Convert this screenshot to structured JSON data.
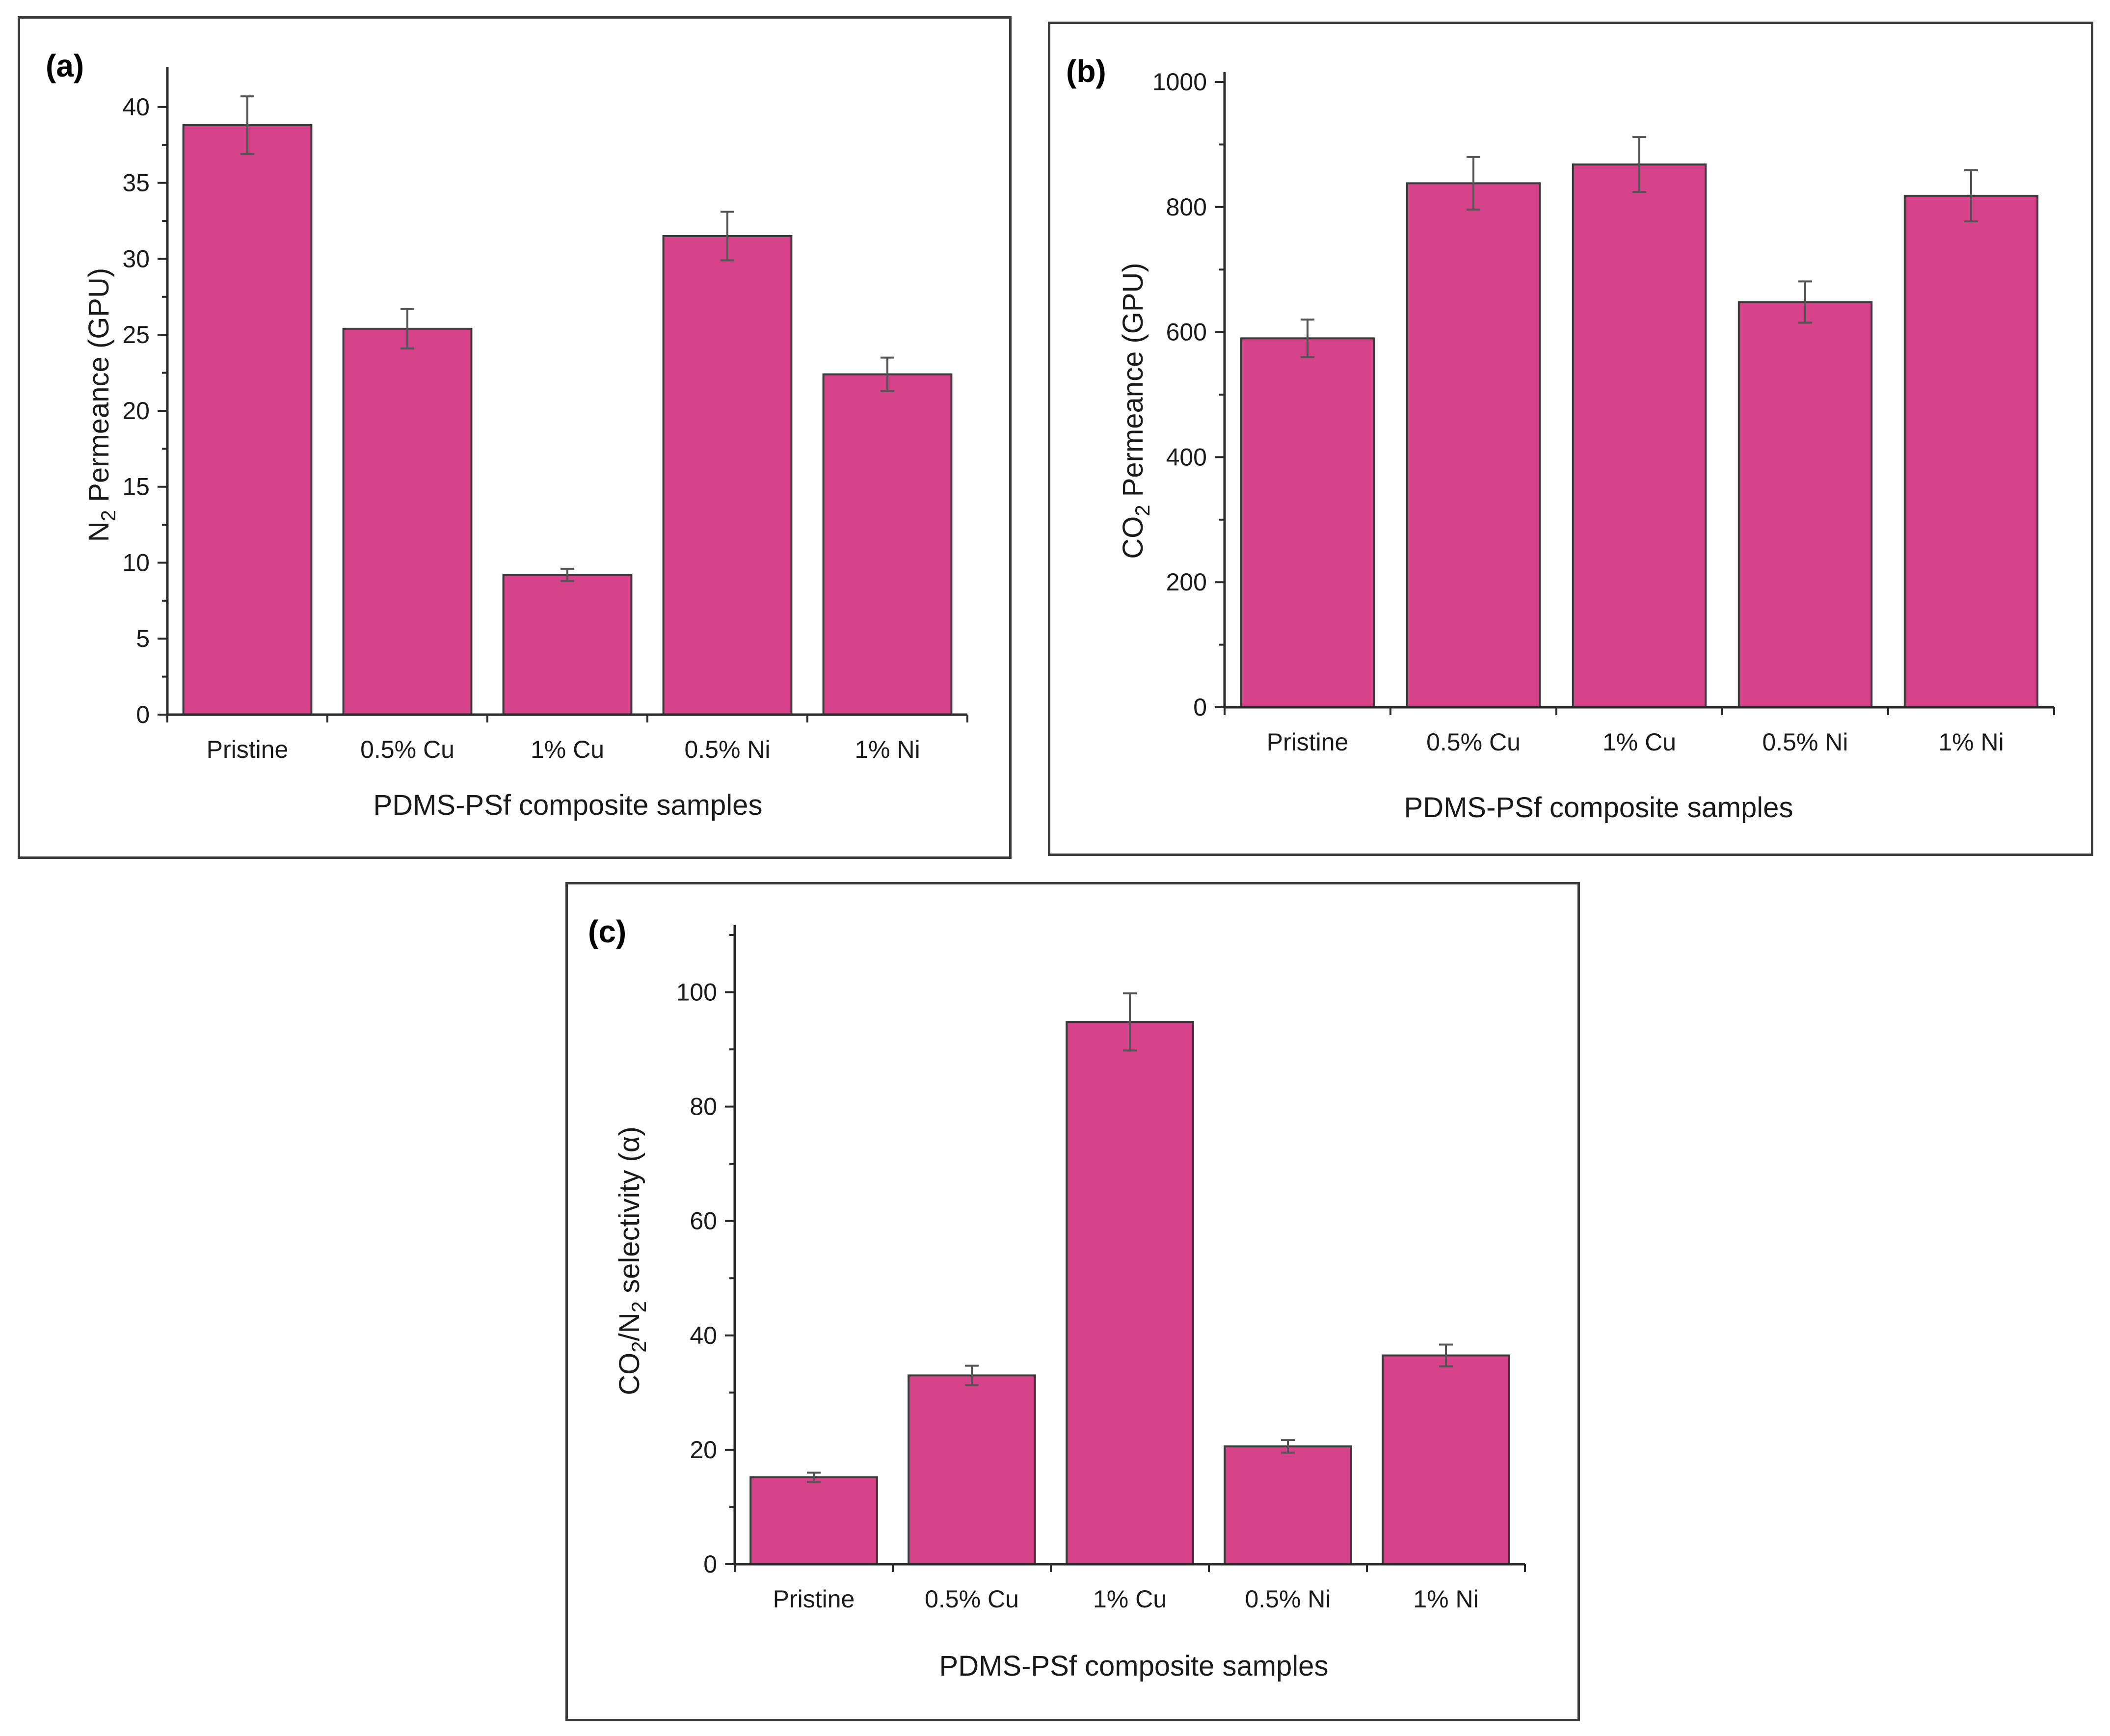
{
  "colors": {
    "bar_fill": "#d6438a",
    "axis": "#2a2a2a"
  },
  "chart_data": [
    {
      "type": "bar",
      "panel_label": "(a)",
      "categories": [
        "Pristine",
        "0.5% Cu",
        "1% Cu",
        "0.5% Ni",
        "1% Ni"
      ],
      "values": [
        38.8,
        25.4,
        9.2,
        31.5,
        22.4
      ],
      "errors": [
        1.9,
        1.3,
        0.4,
        1.6,
        1.1
      ],
      "xlabel": "PDMS-PSf composite samples",
      "ylabel_main": "N",
      "ylabel_sub": "2",
      "ylabel_rest": " Permeance (GPU)",
      "ylim": [
        0,
        42
      ],
      "yticks": [
        0,
        5,
        10,
        15,
        20,
        25,
        30,
        35,
        40
      ],
      "grid": false
    },
    {
      "type": "bar",
      "panel_label": "(b)",
      "categories": [
        "Pristine",
        "0.5% Cu",
        "1% Cu",
        "0.5% Ni",
        "1% Ni"
      ],
      "values": [
        590,
        838,
        868,
        648,
        818
      ],
      "errors": [
        30,
        42,
        44,
        33,
        41
      ],
      "xlabel": "PDMS-PSf composite samples",
      "ylabel_main": "CO",
      "ylabel_sub": "2",
      "ylabel_rest": " Permeance (GPU)",
      "ylim": [
        0,
        1000
      ],
      "yticks": [
        0,
        200,
        400,
        600,
        800,
        1000
      ],
      "grid": false
    },
    {
      "type": "bar",
      "panel_label": "(c)",
      "categories": [
        "Pristine",
        "0.5% Cu",
        "1% Cu",
        "0.5% Ni",
        "1% Ni"
      ],
      "values": [
        15.2,
        33,
        94.8,
        20.6,
        36.5
      ],
      "errors": [
        0.8,
        1.7,
        5,
        1.1,
        1.9
      ],
      "xlabel": "PDMS-PSf composite samples",
      "ylabel_main": "CO",
      "ylabel_sub": "2",
      "ylabel_mid": "/N",
      "ylabel_sub2": "2",
      "ylabel_rest": " selectivity (α)",
      "ylim": [
        0,
        110
      ],
      "yticks": [
        0,
        20,
        40,
        60,
        80,
        100
      ],
      "grid": false
    }
  ]
}
